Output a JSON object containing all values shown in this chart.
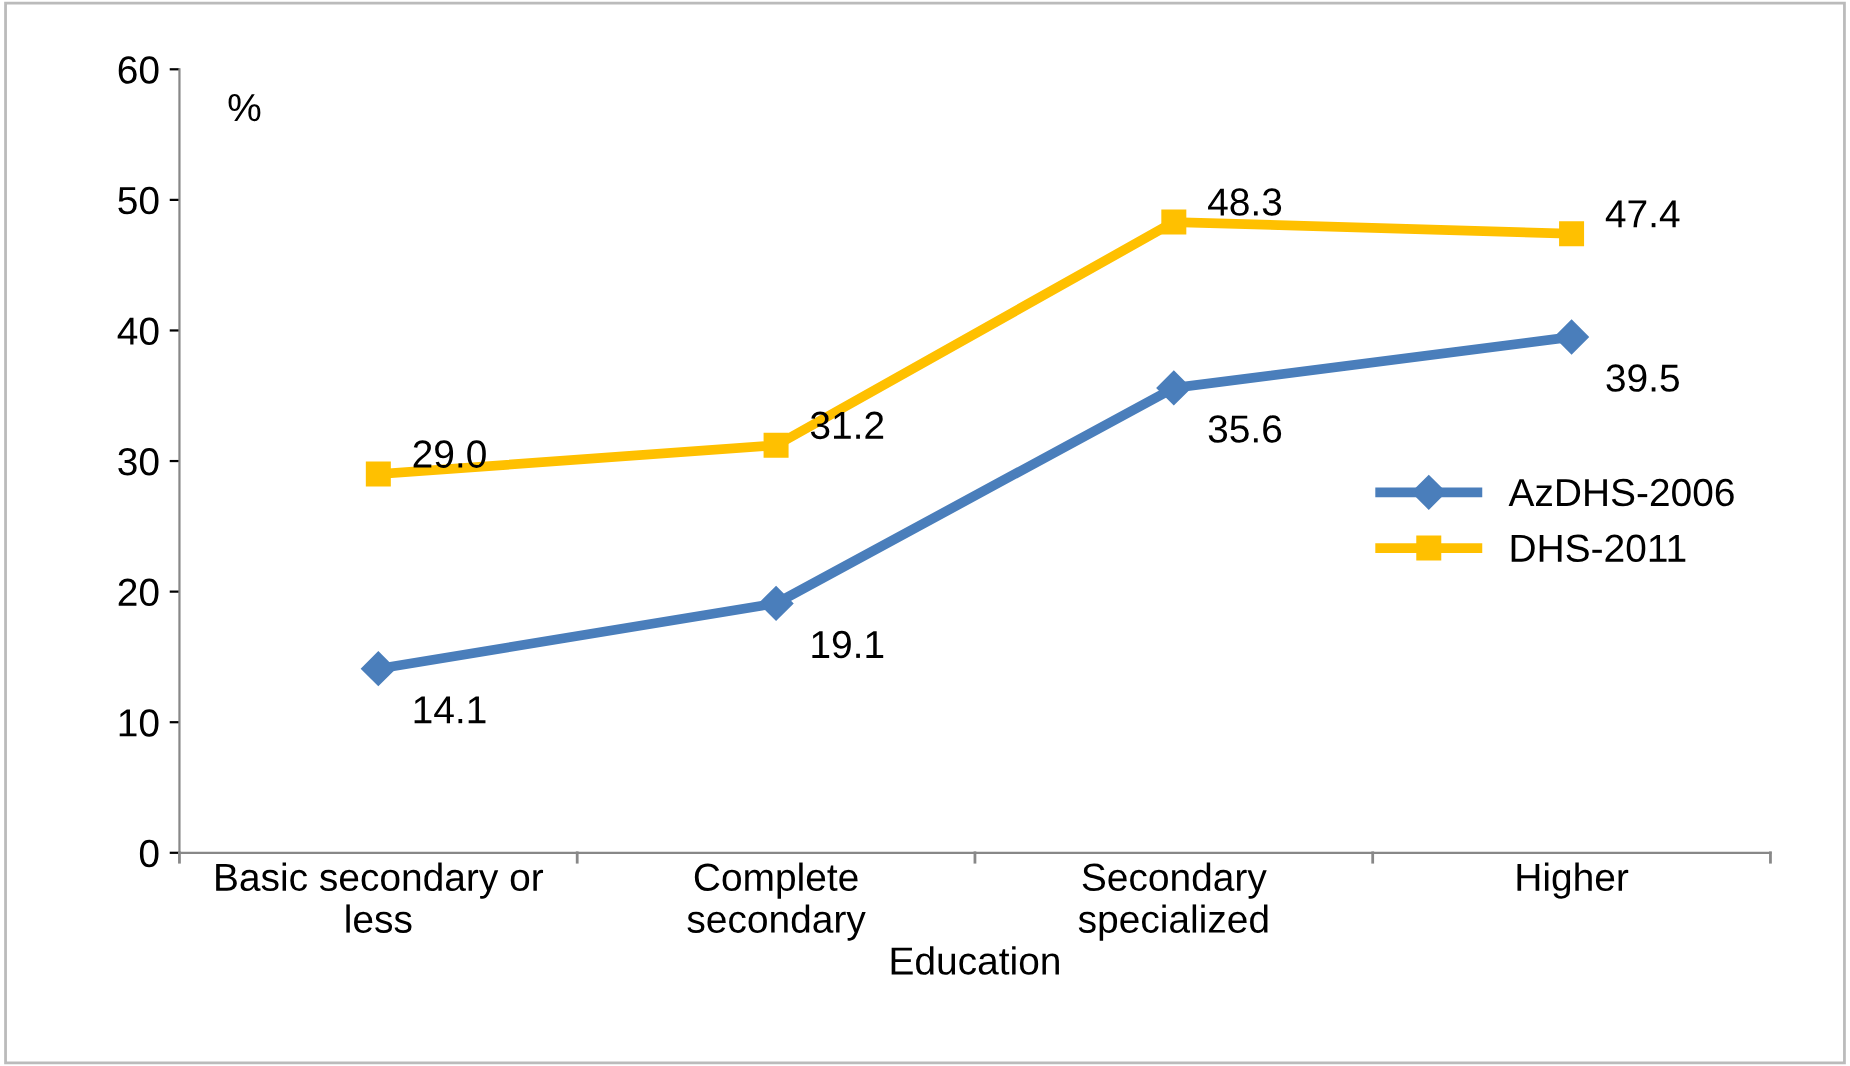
{
  "chart_data": {
    "type": "line",
    "ylabel": "%",
    "xlabel": "Education",
    "categories": [
      "Basic secondary or\nless",
      "Complete\nsecondary",
      "Secondary\nspecialized",
      "Higher"
    ],
    "series": [
      {
        "name": "AzDHS-2006",
        "color": "#4a7ebb",
        "marker": "diamond",
        "values": [
          14.1,
          19.1,
          35.6,
          39.5
        ],
        "value_labels": [
          "14.1",
          "19.1",
          "35.6",
          "39.5"
        ]
      },
      {
        "name": "DHS-2011",
        "color": "#ffc000",
        "marker": "square",
        "values": [
          29.0,
          31.2,
          48.3,
          47.4
        ],
        "value_labels": [
          "29.0",
          "31.2",
          "48.3",
          "47.4"
        ]
      }
    ],
    "ylim": [
      0,
      60
    ],
    "yticks": [
      0,
      10,
      20,
      30,
      40,
      50,
      60
    ],
    "grid": false,
    "legend": "right"
  }
}
